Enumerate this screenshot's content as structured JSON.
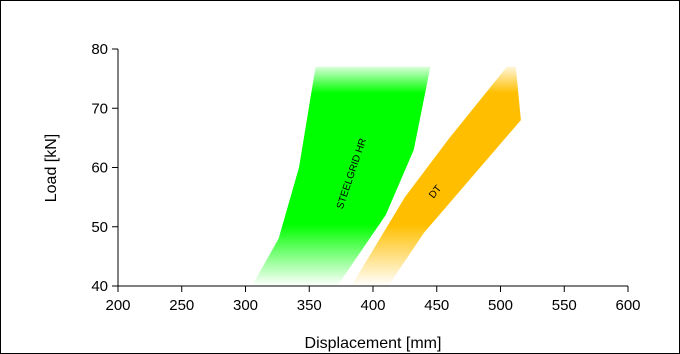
{
  "chart_data": {
    "type": "area",
    "xlabel": "Displacement [mm]",
    "ylabel": "Load [kN]",
    "xlim": [
      200,
      600
    ],
    "ylim": [
      40,
      80
    ],
    "xticks": [
      "200",
      "250",
      "300",
      "350",
      "400",
      "450",
      "500",
      "550",
      "600"
    ],
    "yticks": [
      "40",
      "50",
      "60",
      "70",
      "80"
    ],
    "grid": false,
    "series": [
      {
        "name": "STEELGRID HR",
        "color": "#00ff00",
        "left_edge": [
          [
            305,
            40
          ],
          [
            326,
            48
          ],
          [
            342,
            60
          ],
          [
            355,
            77
          ]
        ],
        "right_edge": [
          [
            445,
            77
          ],
          [
            432,
            63
          ],
          [
            410,
            52
          ],
          [
            372,
            40
          ]
        ]
      },
      {
        "name": "DT",
        "color": "#ffbf00",
        "left_edge": [
          [
            383,
            40
          ],
          [
            425,
            55
          ],
          [
            460,
            65
          ],
          [
            505,
            77
          ]
        ],
        "right_edge": [
          [
            512,
            77
          ],
          [
            516,
            68
          ],
          [
            440,
            49
          ],
          [
            412,
            40
          ]
        ]
      }
    ]
  }
}
